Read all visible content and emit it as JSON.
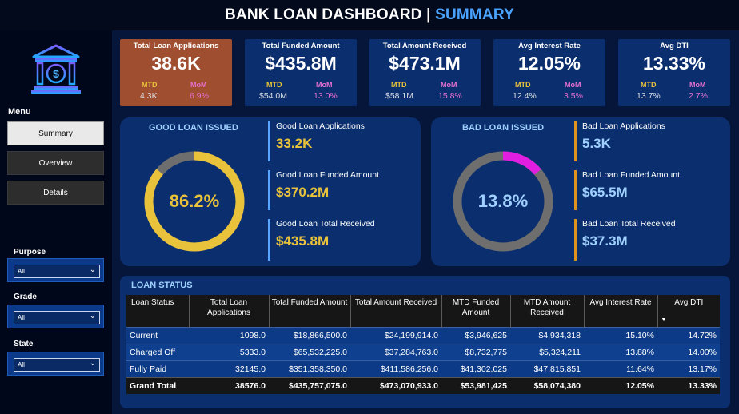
{
  "header": {
    "title_main": "BANK LOAN DASHBOARD |",
    "title_accent": "SUMMARY"
  },
  "sidebar": {
    "logo_icon": "bank-dollar-icon",
    "menu_title": "Menu",
    "menu": [
      "Summary",
      "Overview",
      "Details"
    ],
    "active": "Summary",
    "filters": [
      {
        "label": "Purpose",
        "value": "All"
      },
      {
        "label": "Grade",
        "value": "All"
      },
      {
        "label": "State",
        "value": "All"
      }
    ]
  },
  "kpis": [
    {
      "title": "Total Loan Applications",
      "value": "38.6K",
      "mtd_label": "MTD",
      "mom_label": "MoM",
      "mtd": "4.3K",
      "mom": "6.9%"
    },
    {
      "title": "Total Funded Amount",
      "value": "$435.8M",
      "mtd_label": "MTD",
      "mom_label": "MoM",
      "mtd": "$54.0M",
      "mom": "13.0%"
    },
    {
      "title": "Total Amount Received",
      "value": "$473.1M",
      "mtd_label": "MTD",
      "mom_label": "MoM",
      "mtd": "$58.1M",
      "mom": "15.8%"
    },
    {
      "title": "Avg Interest Rate",
      "value": "12.05%",
      "mtd_label": "MTD",
      "mom_label": "MoM",
      "mtd": "12.4%",
      "mom": "3.5%"
    },
    {
      "title": "Avg DTI",
      "value": "13.33%",
      "mtd_label": "MTD",
      "mom_label": "MoM",
      "mtd": "13.7%",
      "mom": "2.7%"
    }
  ],
  "good_loan": {
    "title": "GOOD LOAN ISSUED",
    "percent_label": "86.2%",
    "percent": 0.862,
    "color": "#e8c23a",
    "stats": [
      {
        "label": "Good Loan Applications",
        "value": "33.2K"
      },
      {
        "label": "Good Loan Funded Amount",
        "value": "$370.2M"
      },
      {
        "label": "Good Loan Total Received",
        "value": "$435.8M"
      }
    ]
  },
  "bad_loan": {
    "title": "BAD LOAN ISSUED",
    "percent_label": "13.8%",
    "percent": 0.138,
    "color": "#e21ee0",
    "stats": [
      {
        "label": "Bad Loan Applications",
        "value": "5.3K"
      },
      {
        "label": "Bad Loan Funded Amount",
        "value": "$65.5M"
      },
      {
        "label": "Bad Loan Total Received",
        "value": "$37.3M"
      }
    ]
  },
  "loan_status": {
    "title": "LOAN STATUS",
    "columns": [
      "Loan Status",
      "Total Loan Applications",
      "Total Funded Amount",
      "Total Amount Received",
      "MTD Funded Amount",
      "MTD Amount Received",
      "Avg Interest Rate",
      "Avg DTI"
    ],
    "rows": [
      [
        "Current",
        "1098.0",
        "$18,866,500.0",
        "$24,199,914.0",
        "$3,946,625",
        "$4,934,318",
        "15.10%",
        "14.72%"
      ],
      [
        "Charged Off",
        "5333.0",
        "$65,532,225.0",
        "$37,284,763.0",
        "$8,732,775",
        "$5,324,211",
        "13.88%",
        "14.00%"
      ],
      [
        "Fully Paid",
        "32145.0",
        "$351,358,350.0",
        "$411,586,256.0",
        "$41,302,025",
        "$47,815,851",
        "11.64%",
        "13.17%"
      ]
    ],
    "total": [
      "Grand Total",
      "38576.0",
      "$435,757,075.0",
      "$473,070,933.0",
      "$53,981,425",
      "$58,074,380",
      "12.05%",
      "13.33%"
    ]
  }
}
